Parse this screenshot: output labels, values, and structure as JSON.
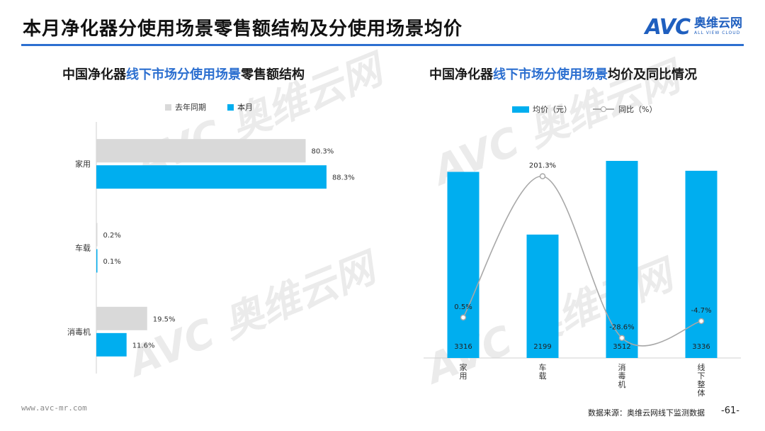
{
  "page": {
    "title": "本月净化器分使用场景零售额结构及分使用场景均价",
    "logo": {
      "mark": "AVC",
      "cn": "奥维云网",
      "en": "ALL VIEW CLOUD"
    },
    "footer_url": "www.avc-mr.com",
    "source": "数据来源：奥维云网线下监测数据",
    "page_number": "-61-"
  },
  "colors": {
    "accent": "#2c6fd0",
    "current": "#00aeef",
    "previous": "#d9d9d9",
    "line": "#a8a8a8"
  },
  "left_chart": {
    "title_prefix": "中国净化器",
    "title_highlight": "线下市场分使用场景",
    "title_suffix": "零售额结构"
  },
  "right_chart": {
    "title_prefix": "中国净化器",
    "title_highlight": "线下市场分使用场景",
    "title_suffix": "均价及同比情况"
  },
  "chart_data": [
    {
      "type": "bar",
      "orientation": "horizontal",
      "categories": [
        "家用",
        "车载",
        "消毒机"
      ],
      "series": [
        {
          "name": "去年同期",
          "values": [
            80.3,
            0.2,
            19.5
          ],
          "labels": [
            "80.3%",
            "0.2%",
            "19.5%"
          ]
        },
        {
          "name": "本月",
          "values": [
            88.3,
            0.1,
            11.6
          ],
          "labels": [
            "88.3%",
            "0.1%",
            "11.6%"
          ]
        }
      ],
      "unit": "%",
      "xlim": [
        0,
        100
      ],
      "grid": false,
      "legend_position": "top"
    },
    {
      "type": "bar",
      "categories": [
        "家用",
        "车载",
        "消毒机",
        "线下整体"
      ],
      "series": [
        {
          "name": "均价（元）",
          "type": "bar",
          "values": [
            3316,
            2199,
            3512,
            3336
          ],
          "labels": [
            "3316",
            "2199",
            "3512",
            "3336"
          ]
        },
        {
          "name": "同比（%）",
          "type": "line",
          "smooth": true,
          "values": [
            0.5,
            201.3,
            -28.6,
            -4.7
          ],
          "labels": [
            "0.5%",
            "201.3%",
            "-28.6%",
            "-4.7%"
          ]
        }
      ],
      "grid": false,
      "legend_position": "top"
    }
  ]
}
